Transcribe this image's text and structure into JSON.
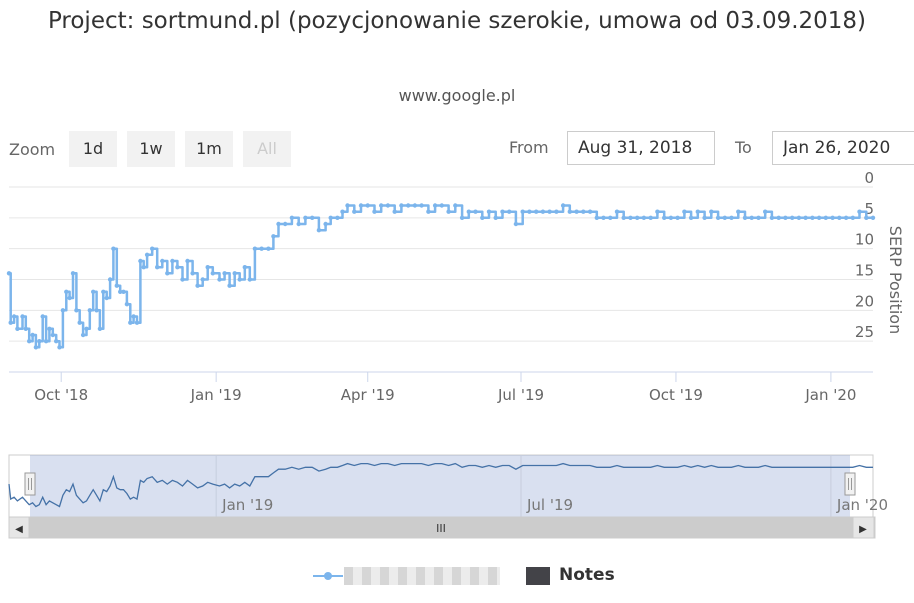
{
  "chart_data": {
    "type": "line",
    "title": "Project: sortmund.pl (pozycjonowanie szerokie, umowa od 03.09.2018)",
    "subtitle": "www.google.pl",
    "ylabel": "SERP Position",
    "y_reversed": true,
    "ylim": [
      0,
      30
    ],
    "y_ticks": [
      "0",
      "5",
      "10",
      "15",
      "20",
      "25"
    ],
    "x_range": [
      "2018-08-31",
      "2020-01-26"
    ],
    "x_ticks": [
      {
        "date": "2018-10-01",
        "label": "Oct '18"
      },
      {
        "date": "2019-01-01",
        "label": "Jan '19"
      },
      {
        "date": "2019-04-01",
        "label": "Apr '19"
      },
      {
        "date": "2019-07-01",
        "label": "Jul '19"
      },
      {
        "date": "2019-10-01",
        "label": "Oct '19"
      },
      {
        "date": "2020-01-01",
        "label": "Jan '20"
      }
    ],
    "navigator_ticks": [
      {
        "date": "2019-01-01",
        "label": "Jan '19"
      },
      {
        "date": "2019-07-01",
        "label": "Jul '19"
      },
      {
        "date": "2020-01-01",
        "label": "Jan '20"
      }
    ],
    "series": [
      {
        "name": "",
        "color": "#7cb5ec",
        "points": [
          [
            "2018-08-31",
            14
          ],
          [
            "2018-09-01",
            22
          ],
          [
            "2018-09-03",
            21
          ],
          [
            "2018-09-05",
            23
          ],
          [
            "2018-09-08",
            21
          ],
          [
            "2018-09-10",
            23
          ],
          [
            "2018-09-12",
            25
          ],
          [
            "2018-09-14",
            24
          ],
          [
            "2018-09-16",
            26
          ],
          [
            "2018-09-18",
            25
          ],
          [
            "2018-09-20",
            21
          ],
          [
            "2018-09-22",
            25
          ],
          [
            "2018-09-24",
            23
          ],
          [
            "2018-09-26",
            24
          ],
          [
            "2018-09-28",
            25
          ],
          [
            "2018-09-30",
            26
          ],
          [
            "2018-10-02",
            20
          ],
          [
            "2018-10-04",
            17
          ],
          [
            "2018-10-06",
            18
          ],
          [
            "2018-10-08",
            14
          ],
          [
            "2018-10-10",
            20
          ],
          [
            "2018-10-12",
            22
          ],
          [
            "2018-10-14",
            24
          ],
          [
            "2018-10-16",
            23
          ],
          [
            "2018-10-18",
            20
          ],
          [
            "2018-10-20",
            17
          ],
          [
            "2018-10-22",
            20
          ],
          [
            "2018-10-24",
            23
          ],
          [
            "2018-10-26",
            17
          ],
          [
            "2018-10-28",
            18
          ],
          [
            "2018-10-30",
            15
          ],
          [
            "2018-11-01",
            10
          ],
          [
            "2018-11-03",
            16
          ],
          [
            "2018-11-05",
            17
          ],
          [
            "2018-11-07",
            17
          ],
          [
            "2018-11-09",
            19
          ],
          [
            "2018-11-11",
            22
          ],
          [
            "2018-11-13",
            21
          ],
          [
            "2018-11-15",
            22
          ],
          [
            "2018-11-17",
            12
          ],
          [
            "2018-11-19",
            13
          ],
          [
            "2018-11-21",
            11
          ],
          [
            "2018-11-24",
            10
          ],
          [
            "2018-11-27",
            13
          ],
          [
            "2018-11-30",
            12
          ],
          [
            "2018-12-03",
            14
          ],
          [
            "2018-12-06",
            12
          ],
          [
            "2018-12-09",
            13
          ],
          [
            "2018-12-12",
            15
          ],
          [
            "2018-12-15",
            12
          ],
          [
            "2018-12-18",
            14
          ],
          [
            "2018-12-21",
            16
          ],
          [
            "2018-12-24",
            15
          ],
          [
            "2018-12-27",
            13
          ],
          [
            "2018-12-30",
            14
          ],
          [
            "2019-01-03",
            15
          ],
          [
            "2019-01-06",
            14
          ],
          [
            "2019-01-09",
            16
          ],
          [
            "2019-01-12",
            14
          ],
          [
            "2019-01-15",
            15
          ],
          [
            "2019-01-18",
            13
          ],
          [
            "2019-01-21",
            15
          ],
          [
            "2019-01-24",
            10
          ],
          [
            "2019-01-28",
            10
          ],
          [
            "2019-02-01",
            10
          ],
          [
            "2019-02-04",
            8
          ],
          [
            "2019-02-07",
            6
          ],
          [
            "2019-02-11",
            6
          ],
          [
            "2019-02-15",
            5
          ],
          [
            "2019-02-19",
            6
          ],
          [
            "2019-02-23",
            5
          ],
          [
            "2019-02-27",
            5
          ],
          [
            "2019-03-03",
            7
          ],
          [
            "2019-03-07",
            6
          ],
          [
            "2019-03-10",
            5
          ],
          [
            "2019-03-14",
            5
          ],
          [
            "2019-03-17",
            4
          ],
          [
            "2019-03-20",
            3
          ],
          [
            "2019-03-24",
            4
          ],
          [
            "2019-03-28",
            3
          ],
          [
            "2019-04-01",
            3
          ],
          [
            "2019-04-05",
            4
          ],
          [
            "2019-04-09",
            3
          ],
          [
            "2019-04-13",
            3
          ],
          [
            "2019-04-17",
            4
          ],
          [
            "2019-04-21",
            3
          ],
          [
            "2019-04-25",
            3
          ],
          [
            "2019-04-29",
            3
          ],
          [
            "2019-05-03",
            3
          ],
          [
            "2019-05-07",
            4
          ],
          [
            "2019-05-11",
            3
          ],
          [
            "2019-05-15",
            3
          ],
          [
            "2019-05-19",
            4
          ],
          [
            "2019-05-23",
            3
          ],
          [
            "2019-05-27",
            5
          ],
          [
            "2019-05-31",
            4
          ],
          [
            "2019-06-04",
            4
          ],
          [
            "2019-06-08",
            5
          ],
          [
            "2019-06-12",
            4
          ],
          [
            "2019-06-16",
            5
          ],
          [
            "2019-06-20",
            4
          ],
          [
            "2019-06-24",
            4
          ],
          [
            "2019-06-28",
            6
          ],
          [
            "2019-07-02",
            4
          ],
          [
            "2019-07-06",
            4
          ],
          [
            "2019-07-10",
            4
          ],
          [
            "2019-07-14",
            4
          ],
          [
            "2019-07-18",
            4
          ],
          [
            "2019-07-22",
            4
          ],
          [
            "2019-07-26",
            3
          ],
          [
            "2019-07-30",
            4
          ],
          [
            "2019-08-03",
            4
          ],
          [
            "2019-08-07",
            4
          ],
          [
            "2019-08-11",
            4
          ],
          [
            "2019-08-15",
            5
          ],
          [
            "2019-08-19",
            5
          ],
          [
            "2019-08-23",
            5
          ],
          [
            "2019-08-27",
            4
          ],
          [
            "2019-08-31",
            5
          ],
          [
            "2019-09-04",
            5
          ],
          [
            "2019-09-08",
            5
          ],
          [
            "2019-09-12",
            5
          ],
          [
            "2019-09-16",
            5
          ],
          [
            "2019-09-20",
            4
          ],
          [
            "2019-09-24",
            5
          ],
          [
            "2019-09-28",
            5
          ],
          [
            "2019-10-02",
            5
          ],
          [
            "2019-10-06",
            4
          ],
          [
            "2019-10-10",
            5
          ],
          [
            "2019-10-14",
            4
          ],
          [
            "2019-10-18",
            5
          ],
          [
            "2019-10-22",
            4
          ],
          [
            "2019-10-26",
            5
          ],
          [
            "2019-10-30",
            5
          ],
          [
            "2019-11-03",
            5
          ],
          [
            "2019-11-07",
            4
          ],
          [
            "2019-11-11",
            5
          ],
          [
            "2019-11-15",
            5
          ],
          [
            "2019-11-19",
            5
          ],
          [
            "2019-11-23",
            4
          ],
          [
            "2019-11-27",
            5
          ],
          [
            "2019-12-01",
            5
          ],
          [
            "2019-12-05",
            5
          ],
          [
            "2019-12-09",
            5
          ],
          [
            "2019-12-13",
            5
          ],
          [
            "2019-12-17",
            5
          ],
          [
            "2019-12-21",
            5
          ],
          [
            "2019-12-25",
            5
          ],
          [
            "2019-12-29",
            5
          ],
          [
            "2020-01-02",
            5
          ],
          [
            "2020-01-06",
            5
          ],
          [
            "2020-01-10",
            5
          ],
          [
            "2020-01-14",
            5
          ],
          [
            "2020-01-18",
            4
          ],
          [
            "2020-01-22",
            5
          ],
          [
            "2020-01-26",
            5
          ]
        ]
      }
    ],
    "legend": [
      {
        "type": "series",
        "label": ""
      },
      {
        "type": "flags",
        "label": "Notes",
        "color": "#434348"
      }
    ]
  },
  "controls": {
    "zoom_label": "Zoom",
    "zoom_buttons": [
      "1d",
      "1w",
      "1m",
      "All"
    ],
    "from_label": "From",
    "to_label": "To",
    "from_value": "Aug 31, 2018",
    "to_value": "Jan 26, 2020"
  },
  "navigator": {
    "scroll_handle_glyph": "III",
    "left_arrow": "◀",
    "right_arrow": "▶"
  }
}
